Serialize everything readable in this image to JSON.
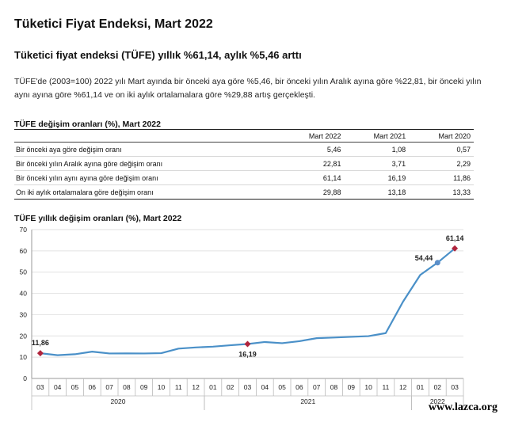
{
  "page_title": "Tüketici Fiyat Endeksi, Mart 2022",
  "subtitle": "Tüketici fiyat endeksi (TÜFE) yıllık %61,14, aylık %5,46 arttı",
  "description": "TÜFE'de (2003=100) 2022 yılı Mart ayında bir önceki aya göre %5,46, bir önceki yılın Aralık ayına göre %22,81, bir önceki yılın aynı ayına göre %61,14 ve on iki aylık ortalamalara göre %29,88 artış gerçekleşti.",
  "table": {
    "title": "TÜFE değişim oranları (%), Mart 2022",
    "columns": [
      "Mart 2022",
      "Mart 2021",
      "Mart 2020"
    ],
    "rows": [
      {
        "label": "Bir önceki aya göre değişim oranı",
        "values": [
          "5,46",
          "1,08",
          "0,57"
        ]
      },
      {
        "label": "Bir önceki yılın Aralık ayına göre değişim oranı",
        "values": [
          "22,81",
          "3,71",
          "2,29"
        ]
      },
      {
        "label": "Bir önceki yılın aynı ayına göre değişim oranı",
        "values": [
          "61,14",
          "16,19",
          "11,86"
        ]
      },
      {
        "label": "On iki aylık ortalamalara göre değişim oranı",
        "values": [
          "29,88",
          "13,18",
          "13,33"
        ]
      }
    ]
  },
  "chart_title": "TÜFE yıllık değişim oranları (%), Mart 2022",
  "chart_data": {
    "type": "line",
    "title": "TÜFE yıllık değişim oranları (%), Mart 2022",
    "xlabel": "",
    "ylabel": "",
    "ylim": [
      0,
      70
    ],
    "yticks": [
      "0",
      "10",
      "20",
      "30",
      "40",
      "50",
      "60",
      "70"
    ],
    "categories": [
      "03",
      "04",
      "05",
      "06",
      "07",
      "08",
      "09",
      "10",
      "11",
      "12",
      "01",
      "02",
      "03",
      "04",
      "05",
      "06",
      "07",
      "08",
      "09",
      "10",
      "11",
      "12",
      "01",
      "02",
      "03"
    ],
    "year_labels": [
      {
        "label": "2020",
        "start": 0,
        "end": 9
      },
      {
        "label": "2021",
        "start": 10,
        "end": 21
      },
      {
        "label": "2022",
        "start": 22,
        "end": 24
      }
    ],
    "series": [
      {
        "name": "TÜFE yıllık değişim oranı",
        "color": "#4a90c8",
        "values": [
          11.86,
          10.94,
          11.39,
          12.62,
          11.76,
          11.77,
          11.75,
          11.89,
          14.03,
          14.6,
          14.97,
          15.61,
          16.19,
          17.14,
          16.59,
          17.53,
          18.95,
          19.25,
          19.58,
          19.89,
          21.31,
          36.08,
          48.69,
          54.44,
          61.14
        ]
      }
    ],
    "markers": [
      {
        "index": 0,
        "label": "11,86",
        "style": "diamond"
      },
      {
        "index": 12,
        "label": "16,19",
        "style": "diamond"
      },
      {
        "index": 23,
        "label": "54,44",
        "style": "circle"
      },
      {
        "index": 24,
        "label": "61,14",
        "style": "diamond"
      }
    ],
    "colors": {
      "line": "#4a90c8",
      "diamond": "#b0243c",
      "circle": "#5b8fc9"
    }
  },
  "watermark": "www.lazca.org"
}
